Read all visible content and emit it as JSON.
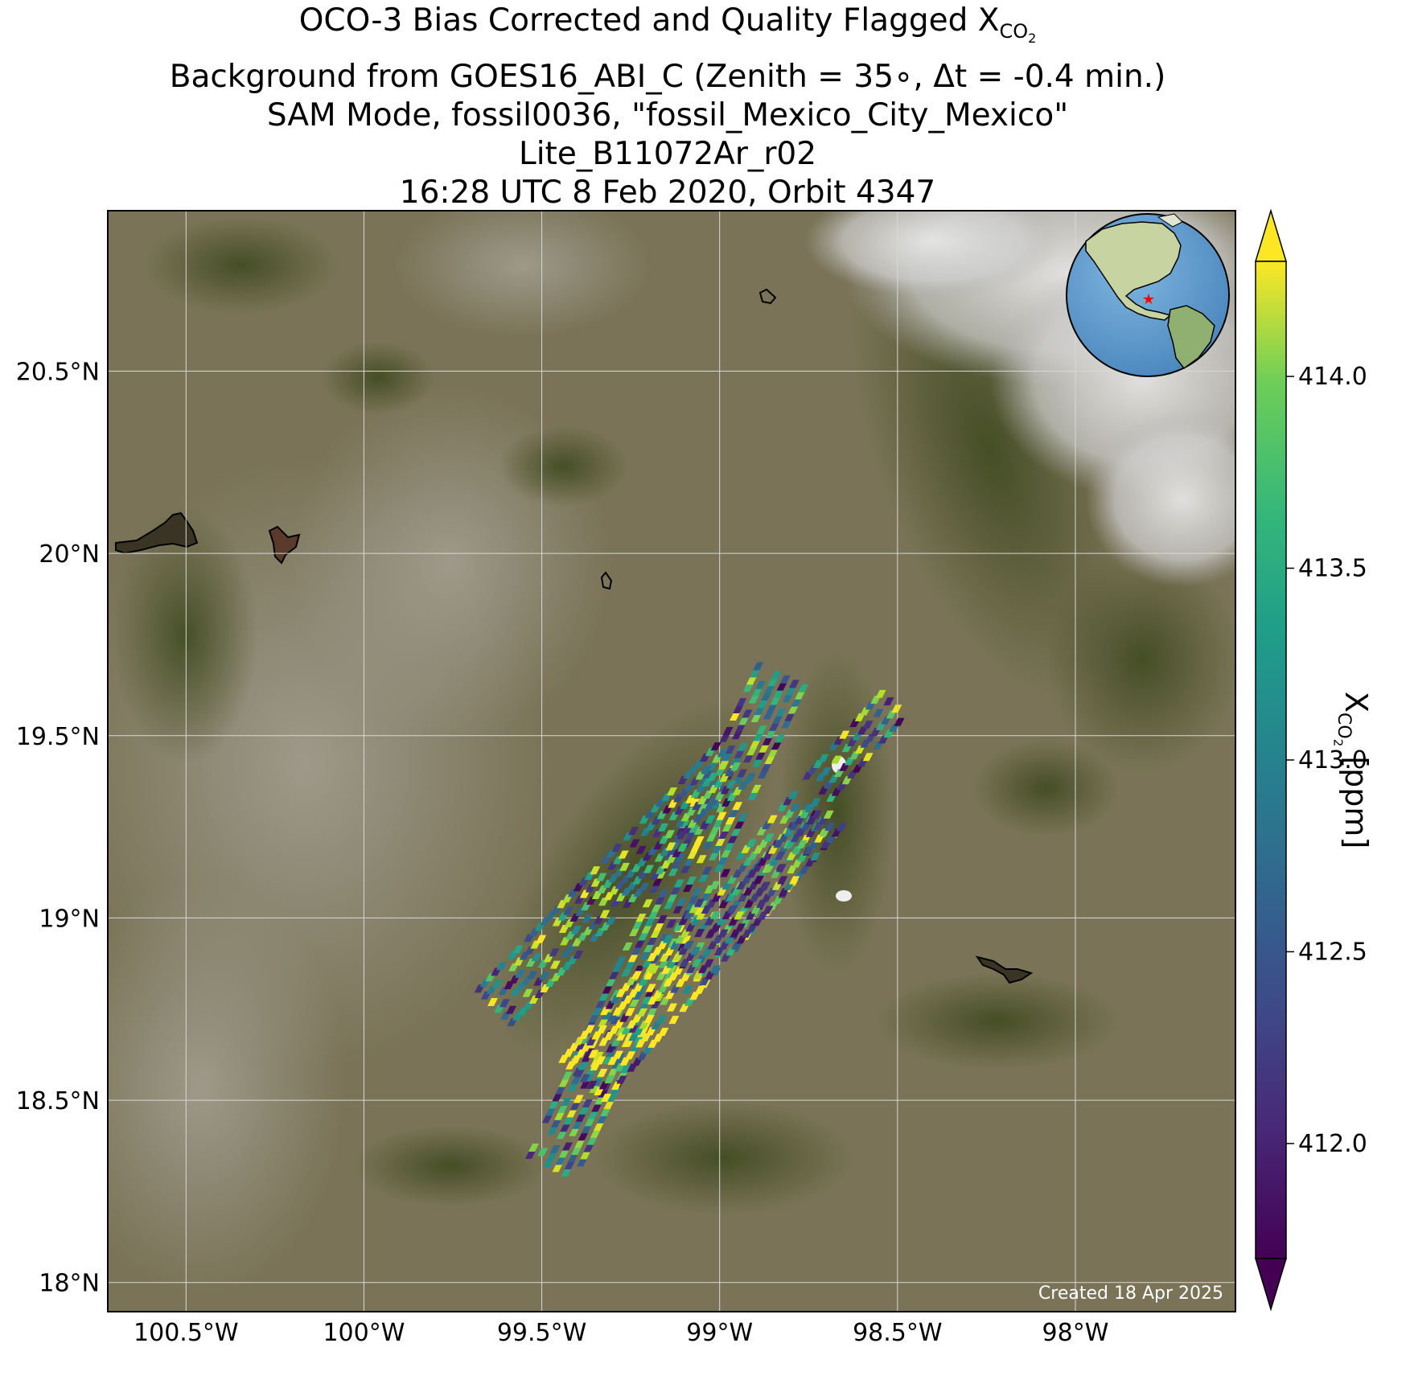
{
  "title": {
    "line1_prefix": "OCO-3 Bias Corrected and Quality Flagged X",
    "line1_sub": "CO",
    "line1_subsub": "2",
    "line2": "Background from GOES16_ABI_C (Zenith = 35∘, Δt = -0.4 min.)",
    "line3": "SAM Mode, fossil0036, \"fossil_Mexico_City_Mexico\"",
    "line4": "Lite_B11072Ar_r02",
    "line5": "16:28 UTC 8 Feb 2020, Orbit 4347"
  },
  "credit": "Created 18 Apr 2025",
  "axes": {
    "lon_ticks": [
      {
        "value": -100.5,
        "label": "100.5°W"
      },
      {
        "value": -100.0,
        "label": "100°W"
      },
      {
        "value": -99.5,
        "label": "99.5°W"
      },
      {
        "value": -99.0,
        "label": "99°W"
      },
      {
        "value": -98.5,
        "label": "98.5°W"
      },
      {
        "value": -98.0,
        "label": "98°W"
      }
    ],
    "lat_ticks": [
      {
        "value": 20.5,
        "label": "20.5°N"
      },
      {
        "value": 20.0,
        "label": "20°N"
      },
      {
        "value": 19.5,
        "label": "19.5°N"
      },
      {
        "value": 19.0,
        "label": "19°N"
      },
      {
        "value": 18.5,
        "label": "18.5°N"
      },
      {
        "value": 18.0,
        "label": "18°N"
      }
    ],
    "lon_range": [
      -100.72,
      -97.55
    ],
    "lat_range": [
      17.92,
      20.94
    ],
    "grid": true
  },
  "colorbar": {
    "label_prefix": "X",
    "label_sub": "CO",
    "label_subsub": "2",
    "label_suffix": " [ppm]",
    "vmin": 411.7,
    "vmax": 414.3,
    "ticks": [
      {
        "value": 412.0,
        "label": "412.0"
      },
      {
        "value": 412.5,
        "label": "412.5"
      },
      {
        "value": 413.0,
        "label": "413.0"
      },
      {
        "value": 413.5,
        "label": "413.5"
      },
      {
        "value": 414.0,
        "label": "414.0"
      }
    ],
    "colormap": "viridis",
    "extend": "both"
  },
  "inset_globe": {
    "marker": "red-star",
    "marker_color": "#ff0000",
    "ocean_color": "#5b9bd0"
  },
  "colors": {
    "land_base": "#7d7558",
    "vegetation": "#4f5a2c",
    "cloud": "#d6d6d6",
    "grid": "#d8d8d8"
  },
  "chart_data": {
    "type": "scatter",
    "description_units": "lon/lat degrees, XCO2 ppm",
    "swaths": [
      {
        "start": [
          -99.47,
          18.32
        ],
        "end": [
          -98.82,
          19.68
        ],
        "width": 0.14
      },
      {
        "start": [
          -99.63,
          18.76
        ],
        "end": [
          -98.95,
          19.44
        ],
        "width": 0.13
      },
      {
        "start": [
          -99.38,
          18.56
        ],
        "end": [
          -98.72,
          19.3
        ],
        "width": 0.16
      },
      {
        "start": [
          -99.08,
          18.86
        ],
        "end": [
          -98.68,
          19.3
        ],
        "width": 0.1
      },
      {
        "start": [
          -98.72,
          19.36
        ],
        "end": [
          -98.5,
          19.6
        ],
        "width": 0.09
      }
    ],
    "color_scale": [
      411.7,
      414.3
    ],
    "notes": "OCO-3 footprints with per-sounding XCO2 values"
  }
}
